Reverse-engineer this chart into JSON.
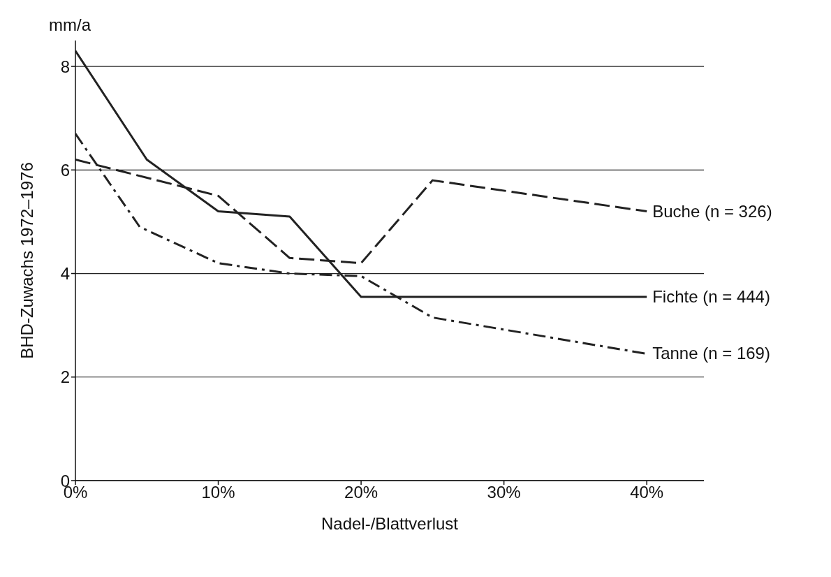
{
  "chart_data": {
    "type": "line",
    "xlabel": "Nadel-/Blattverlust",
    "ylabel": "BHD-Zuwachs 1972–1976",
    "annotations": [
      "mm/a"
    ],
    "xlim": [
      0,
      44
    ],
    "xticks": [
      {
        "value": 0,
        "label": "0%"
      },
      {
        "value": 10,
        "label": "10%"
      },
      {
        "value": 20,
        "label": "20%"
      },
      {
        "value": 30,
        "label": "30%"
      },
      {
        "value": 40,
        "label": "40%"
      }
    ],
    "ylim": [
      0,
      8.5
    ],
    "yticks": [
      0,
      2,
      4,
      6,
      8
    ],
    "grid": "y",
    "marker": "none",
    "series": [
      {
        "name": "Buche (n = 326)",
        "color": "#222222",
        "line_style": "dashed",
        "x": [
          0,
          10,
          15,
          20,
          25,
          40
        ],
        "values": [
          6.2,
          5.5,
          4.3,
          4.2,
          5.8,
          5.2
        ]
      },
      {
        "name": "Fichte (n = 444)",
        "color": "#222222",
        "line_style": "solid",
        "x": [
          0,
          5,
          10,
          15,
          20,
          40
        ],
        "values": [
          8.3,
          6.2,
          5.2,
          5.1,
          3.55,
          3.55
        ]
      },
      {
        "name": "Tanne (n = 169)",
        "color": "#222222",
        "line_style": "dashdot",
        "x": [
          0,
          4.5,
          10,
          15,
          20,
          25,
          40
        ],
        "values": [
          6.7,
          4.9,
          4.2,
          4.0,
          3.95,
          3.15,
          2.45
        ]
      }
    ]
  }
}
